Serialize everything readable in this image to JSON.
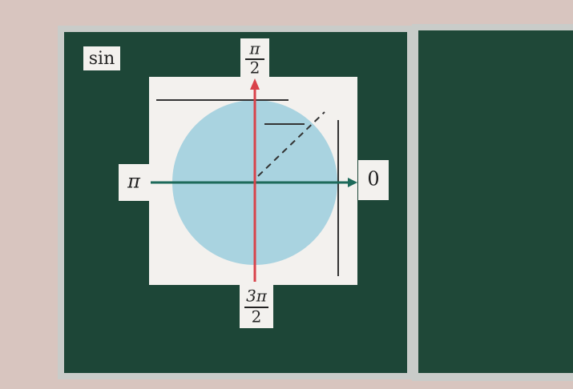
{
  "board": {
    "corner_label": "sin",
    "top_label": {
      "numerator": "π",
      "denominator": "2"
    },
    "left_label": "π",
    "right_label": "0",
    "bottom_label": {
      "numerator": "3π",
      "denominator": "2"
    }
  }
}
